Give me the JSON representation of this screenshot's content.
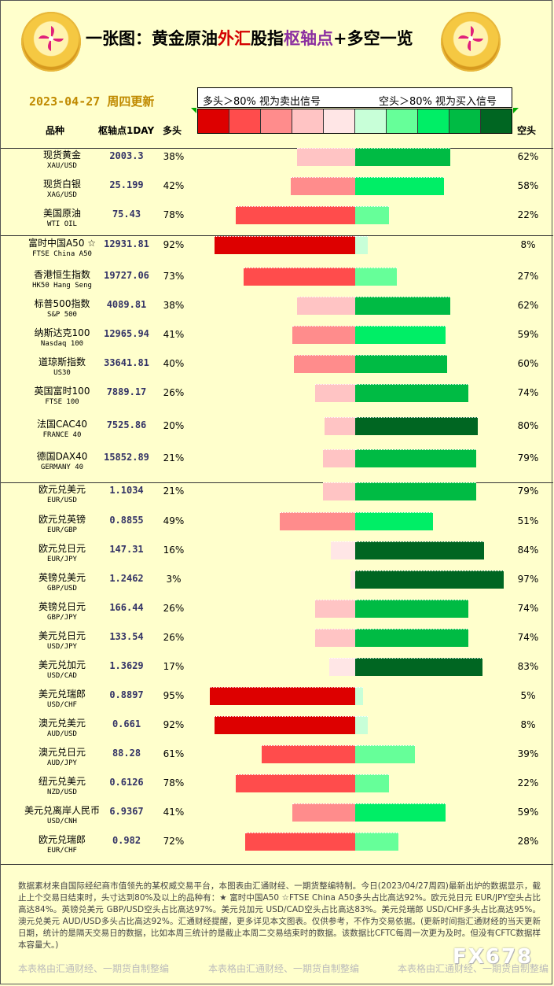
{
  "header": {
    "title_prefix": "一张图：黄金原油",
    "title_red": "外汇",
    "title_mid": "股指",
    "title_purple": "枢轴点",
    "title_suffix": "+多空一览",
    "date": "2023-04-27 周四更新",
    "legend_left": "多头＞80% 视为卖出信号",
    "legend_right": "空头＞80% 视为买入信号",
    "col_name": "品种",
    "col_pivot": "枢轴点1DAY",
    "col_long": "多头",
    "col_short": "空头"
  },
  "colors": {
    "long_scale": [
      "#dd0000",
      "#ff4c4c",
      "#ff8c8c",
      "#ffc4c4",
      "#ffe6e6"
    ],
    "short_scale": [
      "#c8ffd8",
      "#66ff99",
      "#00ee66",
      "#00bb44",
      "#006622"
    ]
  },
  "chart_data": {
    "type": "bar",
    "rows": [
      {
        "name": "现货黄金",
        "en": "XAU/USD",
        "pivot": "2003.3",
        "long": 38,
        "short": 62
      },
      {
        "name": "现货白银",
        "en": "XAG/USD",
        "pivot": "25.199",
        "long": 42,
        "short": 58
      },
      {
        "name": "美国原油",
        "en": "WTI OIL",
        "pivot": "75.43",
        "long": 78,
        "short": 22
      },
      {
        "name": "富时中国A50 ☆",
        "en": "FTSE China A50",
        "pivot": "12931.81",
        "long": 92,
        "short": 8
      },
      {
        "name": "香港恒生指数",
        "en": "HK50 Hang Seng",
        "pivot": "19727.06",
        "long": 73,
        "short": 27
      },
      {
        "name": "标普500指数",
        "en": "S&P 500",
        "pivot": "4089.81",
        "long": 38,
        "short": 62
      },
      {
        "name": "纳斯达克100",
        "en": "Nasdaq 100",
        "pivot": "12965.94",
        "long": 41,
        "short": 59
      },
      {
        "name": "道琼斯指数",
        "en": "US30",
        "pivot": "33641.81",
        "long": 40,
        "short": 60
      },
      {
        "name": "英国富时100",
        "en": "FTSE 100",
        "pivot": "7889.17",
        "long": 26,
        "short": 74
      },
      {
        "name": "法国CAC40",
        "en": "FRANCE 40",
        "pivot": "7525.86",
        "long": 20,
        "short": 80
      },
      {
        "name": "德国DAX40",
        "en": "GERMANY 40",
        "pivot": "15852.89",
        "long": 21,
        "short": 79
      },
      {
        "name": "欧元兑美元",
        "en": "EUR/USD",
        "pivot": "1.1034",
        "long": 21,
        "short": 79
      },
      {
        "name": "欧元兑英镑",
        "en": "EUR/GBP",
        "pivot": "0.8855",
        "long": 49,
        "short": 51
      },
      {
        "name": "欧元兑日元",
        "en": "EUR/JPY",
        "pivot": "147.31",
        "long": 16,
        "short": 84
      },
      {
        "name": "英镑兑美元",
        "en": "GBP/USD",
        "pivot": "1.2462",
        "long": 3,
        "short": 97
      },
      {
        "name": "英镑兑日元",
        "en": "GBP/JPY",
        "pivot": "166.44",
        "long": 26,
        "short": 74
      },
      {
        "name": "美元兑日元",
        "en": "USD/JPY",
        "pivot": "133.54",
        "long": 26,
        "short": 74
      },
      {
        "name": "美元兑加元",
        "en": "USD/CAD",
        "pivot": "1.3629",
        "long": 17,
        "short": 83
      },
      {
        "name": "美元兑瑞郎",
        "en": "USD/CHF",
        "pivot": "0.8897",
        "long": 95,
        "short": 5
      },
      {
        "name": "澳元兑美元",
        "en": "AUD/USD",
        "pivot": "0.661",
        "long": 92,
        "short": 8
      },
      {
        "name": "澳元兑日元",
        "en": "AUD/JPY",
        "pivot": "88.28",
        "long": 61,
        "short": 39
      },
      {
        "name": "纽元兑美元",
        "en": "NZD/USD",
        "pivot": "0.6126",
        "long": 78,
        "short": 22
      },
      {
        "name": "美元兑离岸人民币",
        "en": "USD/CNH",
        "pivot": "6.9367",
        "long": 41,
        "short": 59
      },
      {
        "name": "欧元兑瑞郎",
        "en": "EUR/CHF",
        "pivot": "0.982",
        "long": 72,
        "short": 28
      }
    ]
  },
  "footer": {
    "text": "数据素材来自国际经纪商市值领先的某权威交易平台，本图表由汇通财经、一期货整编特制。今日(2023/04/27周四)最新出炉的数据显示，截止上个交易日结束时，头寸达到80%及以上的品种有：★ 富时中国A50 ☆FTSE China A50多头占比高达92%。欧元兑日元 EUR/JPY空头占比高达84%。英镑兑美元 GBP/USD空头占比高达97%。美元兑加元 USD/CAD空头占比高达83%。美元兑瑞郎 USD/CHF多头占比高达95%。澳元兑美元 AUD/USD多头占比高达92%。汇通财经提醒，更多详见本文图表。仅供参考，不作为交易依据。(更新时间指汇通财经的当天更新日期，统计的是隔天交易日的数据，比如本周三统计的是截止本周二交易结束时的数据。该数据比CFTC每周一次更为及时。但没有CFTC数据样本容量大。)",
    "watermark": "本表格由汇通财经、一期货自制整编",
    "brand": "FX678"
  }
}
